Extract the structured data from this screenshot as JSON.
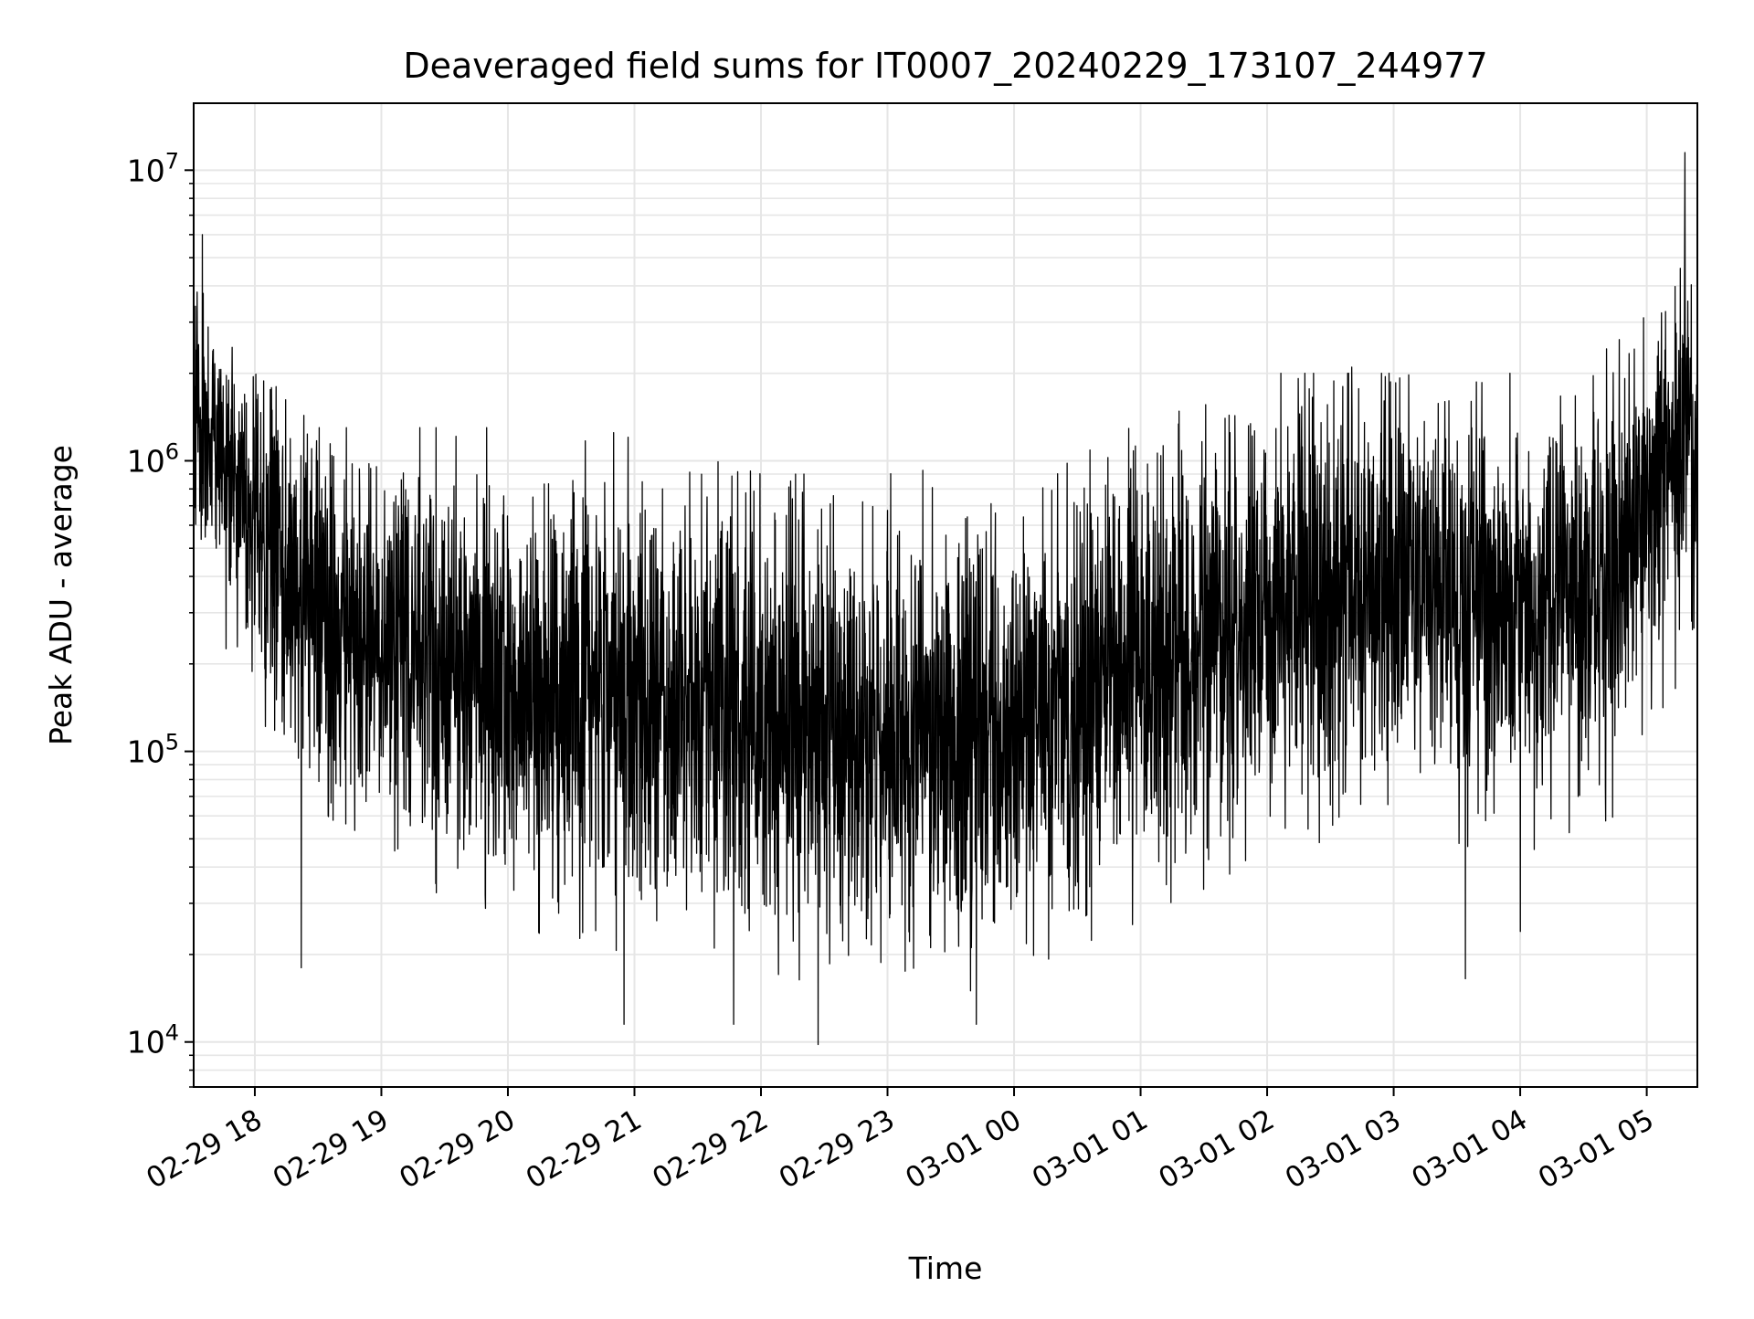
{
  "chart_data": {
    "type": "line",
    "title": "Deaveraged field sums for IT0007_20240229_173107_244977",
    "xlabel": "Time",
    "ylabel": "Peak ADU - average",
    "yscale": "log",
    "xlim": [
      "2024-02-29 17:31",
      "2024-03-01 05:24"
    ],
    "ylim": [
      7000,
      17000000
    ],
    "grid": "on (major and minor)",
    "line_color": "#000000",
    "xticks": [
      {
        "label": "02-29 18",
        "time": "2024-02-29 18:00"
      },
      {
        "label": "02-29 19",
        "time": "2024-02-29 19:00"
      },
      {
        "label": "02-29 20",
        "time": "2024-02-29 20:00"
      },
      {
        "label": "02-29 21",
        "time": "2024-02-29 21:00"
      },
      {
        "label": "02-29 22",
        "time": "2024-02-29 22:00"
      },
      {
        "label": "02-29 23",
        "time": "2024-02-29 23:00"
      },
      {
        "label": "03-01 00",
        "time": "2024-03-01 00:00"
      },
      {
        "label": "03-01 01",
        "time": "2024-03-01 01:00"
      },
      {
        "label": "03-01 02",
        "time": "2024-03-01 02:00"
      },
      {
        "label": "03-01 03",
        "time": "2024-03-01 03:00"
      },
      {
        "label": "03-01 04",
        "time": "2024-03-01 04:00"
      },
      {
        "label": "03-01 05",
        "time": "2024-03-01 05:00"
      }
    ],
    "yticks": [
      {
        "base": "10",
        "exp": "4",
        "value": 10000
      },
      {
        "base": "10",
        "exp": "5",
        "value": 100000
      },
      {
        "base": "10",
        "exp": "6",
        "value": 1000000
      },
      {
        "base": "10",
        "exp": "7",
        "value": 10000000
      }
    ],
    "envelope": {
      "time": [
        "2024-02-29 17:31",
        "2024-02-29 17:45",
        "2024-02-29 18:00",
        "2024-02-29 18:30",
        "2024-02-29 19:00",
        "2024-02-29 20:00",
        "2024-02-29 21:00",
        "2024-02-29 22:00",
        "2024-02-29 23:00",
        "2024-03-01 00:00",
        "2024-03-01 01:00",
        "2024-03-01 02:00",
        "2024-03-01 03:00",
        "2024-03-01 04:00",
        "2024-03-01 04:45",
        "2024-03-01 05:00",
        "2024-03-01 05:24"
      ],
      "center": [
        1500000,
        1000000,
        650000,
        280000,
        230000,
        170000,
        150000,
        130000,
        120000,
        120000,
        190000,
        320000,
        380000,
        300000,
        450000,
        750000,
        1200000
      ],
      "min": [
        600000,
        250000,
        80000,
        30000,
        40000,
        25000,
        20000,
        12000,
        15000,
        15000,
        25000,
        45000,
        35000,
        40000,
        60000,
        120000,
        200000
      ],
      "max": [
        6000000,
        3000000,
        2000000,
        1300000,
        1300000,
        1300000,
        1200000,
        900000,
        900000,
        1000000,
        1400000,
        2000000,
        2000000,
        1800000,
        2500000,
        3500000,
        11000000
      ]
    },
    "extremes": [
      {
        "time": "2024-02-29 18:22",
        "value": 18000
      },
      {
        "time": "2024-02-29 20:55",
        "value": 11500
      },
      {
        "time": "2024-02-29 21:47",
        "value": 11500
      },
      {
        "time": "2024-02-29 22:27",
        "value": 9800
      },
      {
        "time": "2024-02-29 23:42",
        "value": 11500
      },
      {
        "time": "2024-03-01 03:34",
        "value": 16500
      },
      {
        "time": "2024-03-01 04:00",
        "value": 24000
      },
      {
        "time": "2024-02-29 17:35",
        "value": 6000000
      },
      {
        "time": "2024-02-29 18:10",
        "value": 1800000
      },
      {
        "time": "2024-02-29 20:50",
        "value": 1250000
      },
      {
        "time": "2024-03-01 01:40",
        "value": 1400000
      },
      {
        "time": "2024-03-01 02:40",
        "value": 2100000
      },
      {
        "time": "2024-03-01 03:55",
        "value": 2000000
      },
      {
        "time": "2024-03-01 05:18",
        "value": 11500000
      }
    ]
  }
}
